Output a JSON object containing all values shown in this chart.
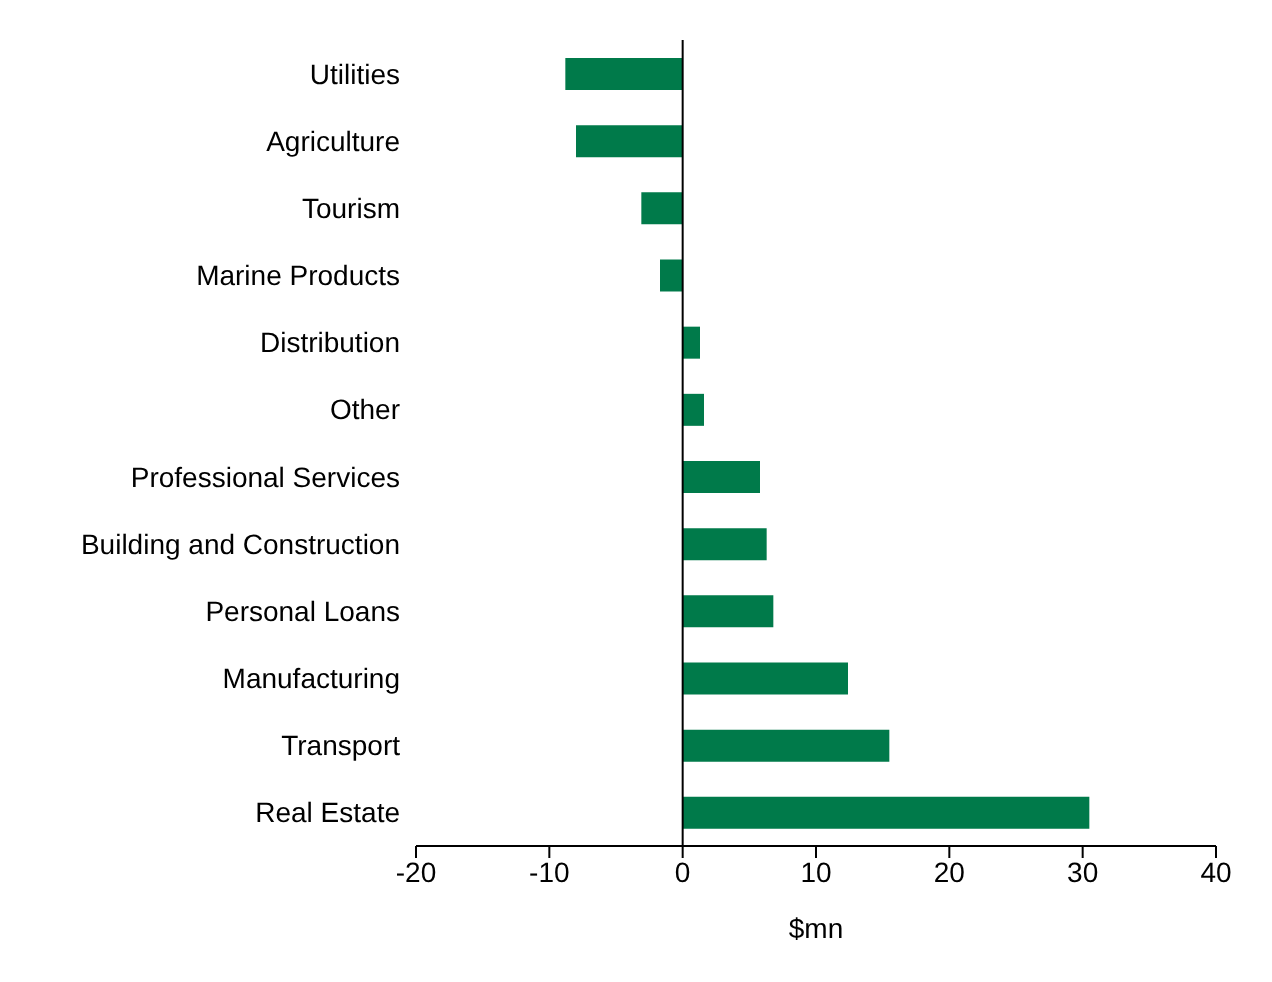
{
  "chart_data": {
    "type": "bar",
    "orientation": "horizontal",
    "xlabel": "$mn",
    "color": "#007a4a",
    "categories": [
      "Utilities",
      "Agriculture",
      "Tourism",
      "Marine Products",
      "Distribution",
      "Other",
      "Professional Services",
      "Building and Construction",
      "Personal Loans",
      "Manufacturing",
      "Transport",
      "Real Estate"
    ],
    "values": [
      -8.8,
      -8.0,
      -3.1,
      -1.7,
      1.3,
      1.6,
      5.8,
      6.3,
      6.8,
      12.4,
      15.5,
      30.5
    ],
    "xlim": [
      -20,
      40
    ],
    "xticks": [
      -20,
      -10,
      0,
      10,
      20,
      30,
      40
    ]
  }
}
